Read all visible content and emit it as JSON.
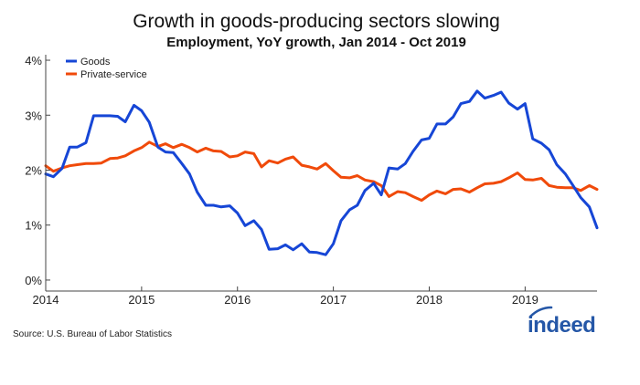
{
  "chart_data": {
    "type": "line",
    "title": "Growth in goods-producing sectors slowing",
    "subtitle": "Employment, YoY growth, Jan 2014 - Oct 2019",
    "xlabel": "",
    "ylabel": "",
    "xlim": [
      2014.0,
      2019.75
    ],
    "ylim": [
      -0.2,
      4.1
    ],
    "x_ticks": [
      2014,
      2015,
      2016,
      2017,
      2018,
      2019
    ],
    "x_tick_labels": [
      "2014",
      "2015",
      "2016",
      "2017",
      "2018",
      "2019"
    ],
    "y_ticks": [
      0,
      1,
      2,
      3,
      4
    ],
    "y_tick_labels": [
      "0%",
      "1%",
      "2%",
      "3%",
      "4%"
    ],
    "legend_position": "top-left",
    "series": [
      {
        "name": "Goods",
        "color": "#1646d6",
        "x": [
          2014.0,
          2014.08,
          2014.17,
          2014.25,
          2014.33,
          2014.42,
          2014.5,
          2014.58,
          2014.67,
          2014.75,
          2014.83,
          2014.92,
          2015.0,
          2015.08,
          2015.17,
          2015.25,
          2015.33,
          2015.42,
          2015.5,
          2015.58,
          2015.67,
          2015.75,
          2015.83,
          2015.92,
          2016.0,
          2016.08,
          2016.17,
          2016.25,
          2016.33,
          2016.42,
          2016.5,
          2016.58,
          2016.67,
          2016.75,
          2016.83,
          2016.92,
          2017.0,
          2017.08,
          2017.17,
          2017.25,
          2017.33,
          2017.42,
          2017.5,
          2017.58,
          2017.67,
          2017.75,
          2017.83,
          2017.92,
          2018.0,
          2018.08,
          2018.17,
          2018.25,
          2018.33,
          2018.42,
          2018.5,
          2018.58,
          2018.67,
          2018.75,
          2018.83,
          2018.92,
          2019.0,
          2019.08,
          2019.17,
          2019.25,
          2019.33,
          2019.42,
          2019.5,
          2019.58,
          2019.67,
          2019.75
        ],
        "values": [
          1.93,
          1.88,
          2.03,
          2.42,
          2.42,
          2.5,
          2.99,
          2.99,
          2.99,
          2.98,
          2.88,
          3.18,
          3.08,
          2.87,
          2.42,
          2.33,
          2.32,
          2.12,
          1.93,
          1.6,
          1.36,
          1.36,
          1.33,
          1.35,
          1.22,
          0.99,
          1.08,
          0.92,
          0.56,
          0.57,
          0.64,
          0.55,
          0.66,
          0.51,
          0.5,
          0.46,
          0.66,
          1.08,
          1.28,
          1.36,
          1.63,
          1.76,
          1.55,
          2.04,
          2.02,
          2.12,
          2.34,
          2.55,
          2.58,
          2.84,
          2.84,
          2.97,
          3.21,
          3.25,
          3.44,
          3.31,
          3.36,
          3.42,
          3.22,
          3.11,
          3.21,
          2.57,
          2.49,
          2.37,
          2.1,
          1.93,
          1.72,
          1.5,
          1.33,
          0.95
        ]
      },
      {
        "name": "Private-service",
        "color": "#f04a0a",
        "x": [
          2014.0,
          2014.08,
          2014.17,
          2014.25,
          2014.33,
          2014.42,
          2014.5,
          2014.58,
          2014.67,
          2014.75,
          2014.83,
          2014.92,
          2015.0,
          2015.08,
          2015.17,
          2015.25,
          2015.33,
          2015.42,
          2015.5,
          2015.58,
          2015.67,
          2015.75,
          2015.83,
          2015.92,
          2016.0,
          2016.08,
          2016.17,
          2016.25,
          2016.33,
          2016.42,
          2016.5,
          2016.58,
          2016.67,
          2016.75,
          2016.83,
          2016.92,
          2017.0,
          2017.08,
          2017.17,
          2017.25,
          2017.33,
          2017.42,
          2017.5,
          2017.58,
          2017.67,
          2017.75,
          2017.83,
          2017.92,
          2018.0,
          2018.08,
          2018.17,
          2018.25,
          2018.33,
          2018.42,
          2018.5,
          2018.58,
          2018.67,
          2018.75,
          2018.83,
          2018.92,
          2019.0,
          2019.08,
          2019.17,
          2019.25,
          2019.33,
          2019.42,
          2019.5,
          2019.58,
          2019.67,
          2019.75
        ],
        "values": [
          2.08,
          1.98,
          2.04,
          2.08,
          2.1,
          2.12,
          2.12,
          2.13,
          2.21,
          2.22,
          2.26,
          2.35,
          2.41,
          2.51,
          2.43,
          2.48,
          2.41,
          2.47,
          2.41,
          2.33,
          2.4,
          2.35,
          2.34,
          2.24,
          2.26,
          2.33,
          2.3,
          2.06,
          2.17,
          2.13,
          2.2,
          2.24,
          2.09,
          2.06,
          2.02,
          2.12,
          1.99,
          1.87,
          1.86,
          1.9,
          1.82,
          1.79,
          1.72,
          1.52,
          1.61,
          1.59,
          1.52,
          1.45,
          1.55,
          1.62,
          1.57,
          1.65,
          1.66,
          1.6,
          1.68,
          1.75,
          1.76,
          1.79,
          1.86,
          1.95,
          1.83,
          1.82,
          1.85,
          1.72,
          1.69,
          1.68,
          1.68,
          1.63,
          1.72,
          1.65
        ]
      }
    ]
  },
  "footer": {
    "source": "Source: U.S. Bureau of Labor Statistics",
    "logo_text": "indeed",
    "logo_color": "#2557a7"
  }
}
